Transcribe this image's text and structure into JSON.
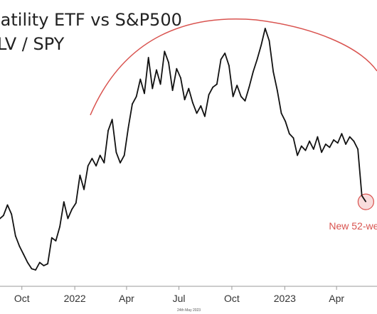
{
  "colors": {
    "line": "#111111",
    "annotation": "#d9534f",
    "annotation_fill": "#f6d5d4",
    "axis": "#999999"
  },
  "chart_data": {
    "type": "line",
    "title": "latility ETF vs S&P500",
    "subtitle": "LV / SPY",
    "xlabel": "",
    "ylabel": "",
    "grid": false,
    "legend": "none",
    "x_tick_labels": [
      "Oct",
      "2022",
      "Apr",
      "Jul",
      "Oct",
      "2023",
      "Apr"
    ],
    "x_ticks": [
      "2021-10-01",
      "2022-01-01",
      "2022-04-01",
      "2022-07-01",
      "2022-10-01",
      "2023-01-01",
      "2023-04-01"
    ],
    "x_range": [
      "2021-08-24",
      "2023-05-24"
    ],
    "series": [
      {
        "points": [
          [
            "2021-08-24",
            0.3
          ],
          [
            "2021-08-30",
            0.8
          ],
          [
            "2021-09-06",
            2.5
          ],
          [
            "2021-09-13",
            1.0
          ],
          [
            "2021-09-20",
            -2.5
          ],
          [
            "2021-09-27",
            -4.2
          ],
          [
            "2021-10-04",
            -5.5
          ],
          [
            "2021-10-11",
            -6.8
          ],
          [
            "2021-10-18",
            -7.8
          ],
          [
            "2021-10-25",
            -8.0
          ],
          [
            "2021-11-01",
            -6.8
          ],
          [
            "2021-11-08",
            -7.3
          ],
          [
            "2021-11-15",
            -7.0
          ],
          [
            "2021-11-22",
            -2.8
          ],
          [
            "2021-11-29",
            -3.3
          ],
          [
            "2021-12-06",
            -1.0
          ],
          [
            "2021-12-13",
            3.0
          ],
          [
            "2021-12-20",
            0.3
          ],
          [
            "2021-12-27",
            1.8
          ],
          [
            "2022-01-03",
            2.8
          ],
          [
            "2022-01-10",
            7.3
          ],
          [
            "2022-01-17",
            5.0
          ],
          [
            "2022-01-24",
            8.8
          ],
          [
            "2022-01-31",
            10.0
          ],
          [
            "2022-02-07",
            8.8
          ],
          [
            "2022-02-14",
            10.5
          ],
          [
            "2022-02-21",
            9.3
          ],
          [
            "2022-02-28",
            14.5
          ],
          [
            "2022-03-07",
            16.3
          ],
          [
            "2022-03-14",
            11.0
          ],
          [
            "2022-03-21",
            9.3
          ],
          [
            "2022-03-28",
            10.5
          ],
          [
            "2022-04-04",
            15.0
          ],
          [
            "2022-04-11",
            18.8
          ],
          [
            "2022-04-18",
            20.0
          ],
          [
            "2022-04-25",
            22.8
          ],
          [
            "2022-05-02",
            20.5
          ],
          [
            "2022-05-09",
            26.3
          ],
          [
            "2022-05-16",
            21.3
          ],
          [
            "2022-05-23",
            24.3
          ],
          [
            "2022-05-30",
            22.0
          ],
          [
            "2022-06-06",
            27.3
          ],
          [
            "2022-06-13",
            25.5
          ],
          [
            "2022-06-20",
            21.0
          ],
          [
            "2022-06-27",
            24.5
          ],
          [
            "2022-07-04",
            23.0
          ],
          [
            "2022-07-11",
            19.5
          ],
          [
            "2022-07-18",
            21.3
          ],
          [
            "2022-07-25",
            19.0
          ],
          [
            "2022-08-01",
            17.3
          ],
          [
            "2022-08-08",
            18.5
          ],
          [
            "2022-08-15",
            16.8
          ],
          [
            "2022-08-22",
            20.3
          ],
          [
            "2022-08-29",
            21.5
          ],
          [
            "2022-09-05",
            22.0
          ],
          [
            "2022-09-12",
            26.0
          ],
          [
            "2022-09-19",
            27.0
          ],
          [
            "2022-09-26",
            25.0
          ],
          [
            "2022-10-03",
            20.0
          ],
          [
            "2022-10-10",
            21.8
          ],
          [
            "2022-10-17",
            20.0
          ],
          [
            "2022-10-24",
            19.3
          ],
          [
            "2022-10-31",
            21.5
          ],
          [
            "2022-11-07",
            24.0
          ],
          [
            "2022-11-14",
            26.0
          ],
          [
            "2022-11-21",
            28.3
          ],
          [
            "2022-11-28",
            31.0
          ],
          [
            "2022-12-05",
            29.0
          ],
          [
            "2022-12-12",
            24.0
          ],
          [
            "2022-12-19",
            21.0
          ],
          [
            "2022-12-26",
            17.3
          ],
          [
            "2023-01-02",
            16.0
          ],
          [
            "2023-01-09",
            14.0
          ],
          [
            "2023-01-16",
            13.3
          ],
          [
            "2023-01-23",
            10.5
          ],
          [
            "2023-01-30",
            12.0
          ],
          [
            "2023-02-06",
            11.3
          ],
          [
            "2023-02-13",
            12.8
          ],
          [
            "2023-02-20",
            11.5
          ],
          [
            "2023-02-27",
            13.5
          ],
          [
            "2023-03-06",
            11.0
          ],
          [
            "2023-03-13",
            12.3
          ],
          [
            "2023-03-20",
            11.8
          ],
          [
            "2023-03-27",
            13.0
          ],
          [
            "2023-04-03",
            12.5
          ],
          [
            "2023-04-10",
            14.0
          ],
          [
            "2023-04-17",
            12.3
          ],
          [
            "2023-04-24",
            13.5
          ],
          [
            "2023-05-01",
            12.8
          ],
          [
            "2023-05-08",
            11.5
          ],
          [
            "2023-05-15",
            4.0
          ],
          [
            "2023-05-22",
            3.0
          ]
        ]
      }
    ],
    "annotations": [
      {
        "type": "arc",
        "desc": "red arc spanning the top of the series"
      },
      {
        "type": "circle",
        "at": [
          "2023-05-22",
          3.0
        ]
      },
      {
        "type": "text",
        "text": "New 52-we",
        "at": [
          "2023-05-22",
          3.0
        ]
      }
    ],
    "footer_text": "24th May 2023"
  }
}
